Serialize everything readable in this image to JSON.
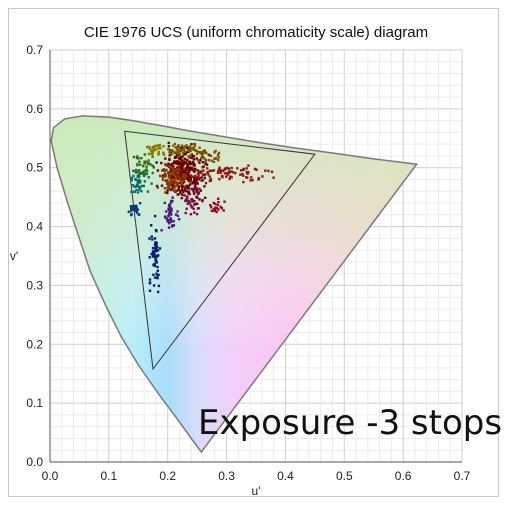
{
  "chart_data": {
    "type": "scatter",
    "title": "CIE 1976 UCS (uniform chromaticity scale) diagram",
    "xlabel": "u'",
    "ylabel": "v'",
    "xlim": [
      0.0,
      0.7
    ],
    "ylim": [
      0.0,
      0.7
    ],
    "xticks": [
      "0.0",
      "0.1",
      "0.2",
      "0.3",
      "0.4",
      "0.5",
      "0.6",
      "0.7"
    ],
    "yticks": [
      "0.0",
      "0.1",
      "0.2",
      "0.3",
      "0.4",
      "0.5",
      "0.6",
      "0.7"
    ],
    "grid": true,
    "annotation": "Exposure  -3 stops",
    "spectral_locus": [
      [
        0.257,
        0.017
      ],
      [
        0.24,
        0.04
      ],
      [
        0.215,
        0.075
      ],
      [
        0.185,
        0.115
      ],
      [
        0.15,
        0.165
      ],
      [
        0.12,
        0.215
      ],
      [
        0.095,
        0.265
      ],
      [
        0.068,
        0.325
      ],
      [
        0.048,
        0.385
      ],
      [
        0.03,
        0.44
      ],
      [
        0.012,
        0.5
      ],
      [
        0.002,
        0.545
      ],
      [
        0.006,
        0.568
      ],
      [
        0.025,
        0.583
      ],
      [
        0.055,
        0.588
      ],
      [
        0.1,
        0.586
      ],
      [
        0.14,
        0.58
      ],
      [
        0.185,
        0.572
      ],
      [
        0.24,
        0.562
      ],
      [
        0.3,
        0.552
      ],
      [
        0.36,
        0.542
      ],
      [
        0.42,
        0.533
      ],
      [
        0.48,
        0.525
      ],
      [
        0.55,
        0.515
      ],
      [
        0.623,
        0.506
      ]
    ],
    "gamut_triangle": [
      [
        0.127,
        0.562
      ],
      [
        0.45,
        0.523
      ],
      [
        0.175,
        0.158
      ]
    ],
    "point_clusters": [
      {
        "color": "#6b0000",
        "center": [
          0.227,
          0.49
        ],
        "spread": [
          0.03,
          0.035
        ],
        "count": 320
      },
      {
        "color": "#8b3b00",
        "center": [
          0.21,
          0.48
        ],
        "spread": [
          0.02,
          0.02
        ],
        "count": 80
      },
      {
        "color": "#8a1a1a",
        "center": [
          0.3,
          0.49
        ],
        "spread": [
          0.06,
          0.012
        ],
        "count": 90
      },
      {
        "color": "#7a5a00",
        "center": [
          0.23,
          0.53
        ],
        "spread": [
          0.025,
          0.01
        ],
        "count": 60
      },
      {
        "color": "#8a7a00",
        "center": [
          0.18,
          0.53
        ],
        "spread": [
          0.015,
          0.01
        ],
        "count": 30
      },
      {
        "color": "#2e6e10",
        "center": [
          0.16,
          0.5
        ],
        "spread": [
          0.015,
          0.02
        ],
        "count": 40
      },
      {
        "color": "#0a6a6a",
        "center": [
          0.15,
          0.475
        ],
        "spread": [
          0.015,
          0.02
        ],
        "count": 40
      },
      {
        "color": "#0a3a7a",
        "center": [
          0.145,
          0.43
        ],
        "spread": [
          0.01,
          0.01
        ],
        "count": 30
      },
      {
        "color": "#0a1a6a",
        "center": [
          0.178,
          0.35
        ],
        "spread": [
          0.008,
          0.04
        ],
        "count": 60
      },
      {
        "color": "#4a1a7a",
        "center": [
          0.205,
          0.42
        ],
        "spread": [
          0.012,
          0.03
        ],
        "count": 45
      },
      {
        "color": "#7a0a4a",
        "center": [
          0.245,
          0.445
        ],
        "spread": [
          0.012,
          0.02
        ],
        "count": 40
      },
      {
        "color": "#8a0a2a",
        "center": [
          0.285,
          0.435
        ],
        "spread": [
          0.012,
          0.01
        ],
        "count": 20
      },
      {
        "color": "#7a4a10",
        "center": [
          0.27,
          0.52
        ],
        "spread": [
          0.02,
          0.01
        ],
        "count": 25
      }
    ]
  }
}
